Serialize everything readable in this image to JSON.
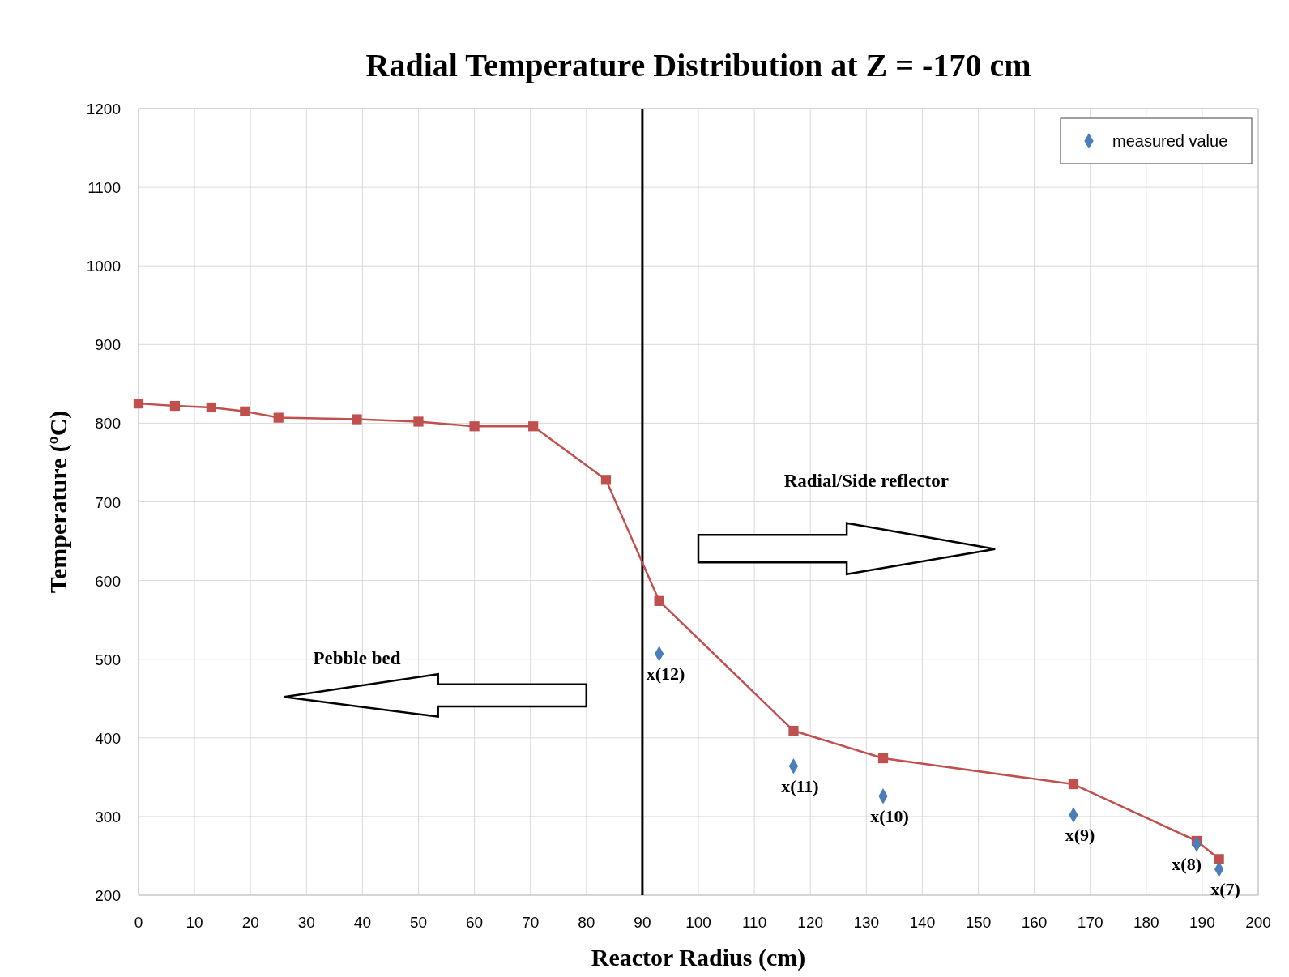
{
  "chart_data": {
    "type": "line",
    "title": "Radial Temperature  Distribution  at Z = -170 cm",
    "xlabel": "Reactor Radius (cm)",
    "ylabel": "Temperature (ºC)",
    "xlim": [
      0,
      200
    ],
    "xticks": [
      0,
      10,
      20,
      30,
      40,
      50,
      60,
      70,
      80,
      90,
      100,
      110,
      120,
      130,
      140,
      150,
      160,
      170,
      180,
      190,
      200
    ],
    "ylim": [
      200,
      1200
    ],
    "yticks": [
      200,
      300,
      400,
      500,
      600,
      700,
      800,
      900,
      1000,
      1100,
      1200
    ],
    "grid": true,
    "legend": "top right",
    "series": [
      {
        "type": "scatter",
        "name": "measured value",
        "color": "#4a7ebb",
        "marker": "diamond",
        "x": [
          93,
          117,
          133,
          167,
          189,
          193
        ],
        "values": [
          507,
          364,
          326,
          302,
          265,
          233
        ]
      },
      {
        "type": "line",
        "color": "#c0504d",
        "marker": "square",
        "x": [
          0,
          6.5,
          13,
          19,
          25,
          39,
          50,
          60,
          70.5,
          83.5,
          93,
          117,
          133,
          167,
          189,
          193
        ],
        "values": [
          825,
          822,
          820,
          815,
          807,
          805,
          802,
          796,
          796,
          728,
          574,
          409,
          374,
          341,
          269,
          246
        ]
      }
    ],
    "ref_lines": [
      {
        "axis": "x",
        "value": 90,
        "color": "#000000"
      }
    ],
    "annotations": [
      "Pebble bed",
      "Radial/Side reflector",
      {
        "text": "x(12)",
        "x": 93,
        "y": 507
      },
      {
        "text": "x(11)",
        "x": 117,
        "y": 364
      },
      {
        "text": "x(10)",
        "x": 133,
        "y": 326
      },
      {
        "text": "x(9)",
        "x": 167,
        "y": 302
      },
      {
        "text": "x(8)",
        "x": 189,
        "y": 265
      },
      {
        "text": "x(7)",
        "x": 193,
        "y": 233
      }
    ]
  }
}
